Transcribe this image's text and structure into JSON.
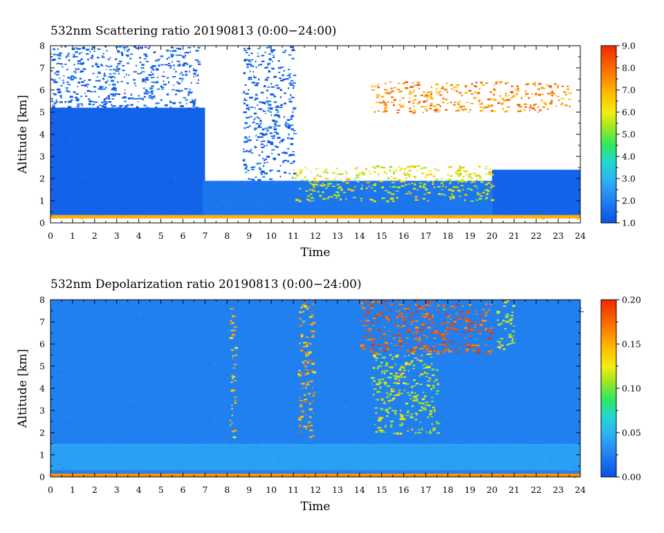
{
  "chart_data": [
    {
      "type": "heatmap",
      "title": "532nm Scattering ratio  20190813 (0:00−24:00)",
      "xlabel": "Time",
      "ylabel": "Altitude [km]",
      "xlim": [
        0,
        24
      ],
      "ylim": [
        0,
        8
      ],
      "xticks": [
        "0",
        "1",
        "2",
        "3",
        "4",
        "5",
        "6",
        "7",
        "8",
        "9",
        "10",
        "11",
        "12",
        "13",
        "14",
        "15",
        "16",
        "17",
        "18",
        "19",
        "20",
        "21",
        "22",
        "23",
        "24"
      ],
      "yticks": [
        "0",
        "1",
        "2",
        "3",
        "4",
        "5",
        "6",
        "7",
        "8"
      ],
      "colorbar": {
        "min": 1.0,
        "max": 9.0,
        "ticks": [
          "1.0",
          "2.0",
          "3.0",
          "4.0",
          "5.0",
          "6.0",
          "7.0",
          "8.0",
          "9.0"
        ]
      },
      "regions": [
        {
          "t0": 0.0,
          "t1": 7.0,
          "h0": 0.35,
          "h1": 5.2,
          "value": 1.4
        },
        {
          "t0": 0.0,
          "t1": 6.7,
          "h0": 5.2,
          "h1": 8.0,
          "value": 1.3,
          "sparse": true
        },
        {
          "t0": 6.9,
          "t1": 20.0,
          "h0": 0.35,
          "h1": 1.9,
          "value": 1.8
        },
        {
          "t0": 8.7,
          "t1": 11.0,
          "h0": 1.9,
          "h1": 8.0,
          "value": 1.3,
          "sparse": true
        },
        {
          "t0": 20.0,
          "t1": 24.0,
          "h0": 0.35,
          "h1": 2.4,
          "value": 1.4
        },
        {
          "t0": 14.5,
          "t1": 23.5,
          "h0": 5.0,
          "h1": 6.4,
          "value": 7.5,
          "sparse": true
        },
        {
          "t0": 11.0,
          "t1": 20.0,
          "h0": 1.0,
          "h1": 2.6,
          "value": 6.0,
          "sparse": true
        },
        {
          "t0": 0.0,
          "t1": 24.0,
          "h0": 0.2,
          "h1": 0.35,
          "value": 7.0
        }
      ]
    },
    {
      "type": "heatmap",
      "title": "532nm Depolarization ratio  20190813 (0:00−24:00)",
      "xlabel": "Time",
      "ylabel": "Altitude [km]",
      "xlim": [
        0,
        24
      ],
      "ylim": [
        0,
        8
      ],
      "xticks": [
        "0",
        "1",
        "2",
        "3",
        "4",
        "5",
        "6",
        "7",
        "8",
        "9",
        "10",
        "11",
        "12",
        "13",
        "14",
        "15",
        "16",
        "17",
        "18",
        "19",
        "20",
        "21",
        "22",
        "23",
        "24"
      ],
      "yticks": [
        "0",
        "1",
        "2",
        "3",
        "4",
        "5",
        "6",
        "7",
        "8"
      ],
      "colorbar": {
        "min": 0.0,
        "max": 0.2,
        "ticks": [
          "0.00",
          "0.05",
          "0.10",
          "0.15",
          "0.20"
        ]
      },
      "regions": [
        {
          "t0": 0.0,
          "t1": 24.0,
          "h0": 0.0,
          "h1": 8.0,
          "value": 0.025
        },
        {
          "t0": 0.0,
          "t1": 24.0,
          "h0": 0.3,
          "h1": 1.5,
          "value": 0.04
        },
        {
          "t0": 8.1,
          "t1": 8.35,
          "h0": 1.8,
          "h1": 8.0,
          "value": 0.14,
          "sparse": true
        },
        {
          "t0": 11.2,
          "t1": 11.9,
          "h0": 1.7,
          "h1": 8.0,
          "value": 0.15,
          "sparse": true
        },
        {
          "t0": 14.0,
          "t1": 20.0,
          "h0": 5.6,
          "h1": 8.0,
          "value": 0.18,
          "sparse": true
        },
        {
          "t0": 14.5,
          "t1": 17.5,
          "h0": 2.0,
          "h1": 5.6,
          "value": 0.12,
          "sparse": true
        },
        {
          "t0": 20.2,
          "t1": 21.0,
          "h0": 5.8,
          "h1": 8.0,
          "value": 0.12,
          "sparse": true
        },
        {
          "t0": 0.0,
          "t1": 24.0,
          "h0": 0.0,
          "h1": 0.15,
          "value": 0.16
        }
      ]
    }
  ],
  "colors": {
    "frame": "#000000",
    "background": "#ffffff"
  }
}
